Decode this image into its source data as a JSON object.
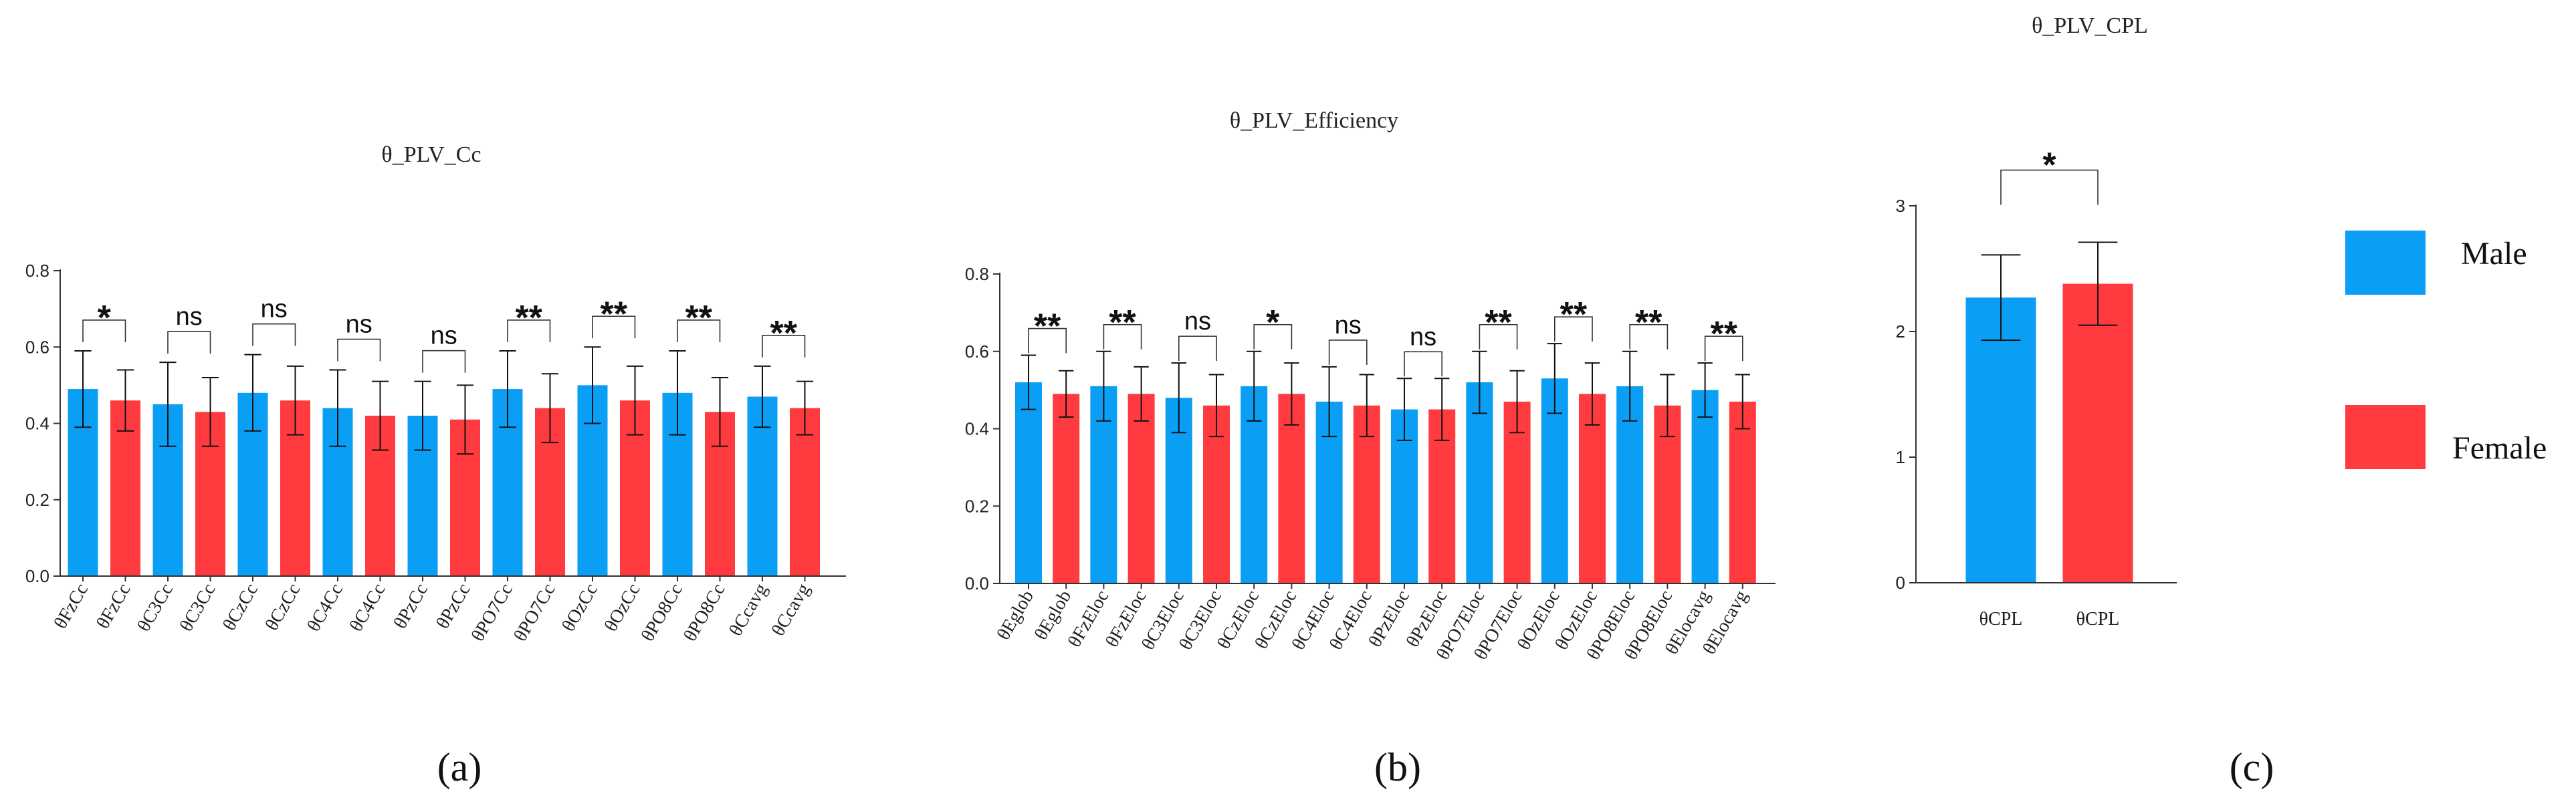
{
  "legend": {
    "male": {
      "label": "Male",
      "color": "#0A9EF5"
    },
    "female": {
      "label": "Female",
      "color": "#FF3B3F"
    }
  },
  "chart_data": [
    {
      "type": "bar",
      "panel_label": "(a)",
      "title": "θ_PLV_Cc",
      "categories": [
        "θFzCc",
        "θFzCc",
        "θC3Cc",
        "θC3Cc",
        "θCzCc",
        "θCzCc",
        "θC4Cc",
        "θC4Cc",
        "θPzCc",
        "θPzCc",
        "θPO7Cc",
        "θPO7Cc",
        "θOzCc",
        "θOzCc",
        "θPO8Cc",
        "θPO8Cc",
        "θCcavg",
        "θCcavg"
      ],
      "groups": [
        "Male",
        "Female",
        "Male",
        "Female",
        "Male",
        "Female",
        "Male",
        "Female",
        "Male",
        "Female",
        "Male",
        "Female",
        "Male",
        "Female",
        "Male",
        "Female",
        "Male",
        "Female"
      ],
      "values": [
        0.49,
        0.46,
        0.45,
        0.43,
        0.48,
        0.46,
        0.44,
        0.42,
        0.42,
        0.41,
        0.49,
        0.44,
        0.5,
        0.46,
        0.48,
        0.43,
        0.47,
        0.44
      ],
      "errors": [
        0.1,
        0.08,
        0.11,
        0.09,
        0.1,
        0.09,
        0.1,
        0.09,
        0.09,
        0.09,
        0.1,
        0.09,
        0.1,
        0.09,
        0.11,
        0.09,
        0.08,
        0.07
      ],
      "significance": [
        "*",
        "ns",
        "ns",
        "ns",
        "ns",
        "**",
        "**",
        "**",
        "**"
      ],
      "yticks": [
        "0.0",
        "0.2",
        "0.4",
        "0.6",
        "0.8"
      ],
      "ylim": [
        0,
        0.8
      ]
    },
    {
      "type": "bar",
      "panel_label": "(b)",
      "title": "θ_PLV_Efficiency",
      "categories": [
        "θEglob",
        "θEglob",
        "θFzEloc",
        "θFzEloc",
        "θC3Eloc",
        "θC3Eloc",
        "θCzEloc",
        "θCzEloc",
        "θC4Eloc",
        "θC4Eloc",
        "θPzEloc",
        "θPzEloc",
        "θPO7Eloc",
        "θPO7Eloc",
        "θOzEloc",
        "θOzEloc",
        "θPO8Eloc",
        "θPO8Eloc",
        "θElocavg",
        "θElocavg"
      ],
      "groups": [
        "Male",
        "Female",
        "Male",
        "Female",
        "Male",
        "Female",
        "Male",
        "Female",
        "Male",
        "Female",
        "Male",
        "Female",
        "Male",
        "Female",
        "Male",
        "Female",
        "Male",
        "Female",
        "Male",
        "Female"
      ],
      "values": [
        0.52,
        0.49,
        0.51,
        0.49,
        0.48,
        0.46,
        0.51,
        0.49,
        0.47,
        0.46,
        0.45,
        0.45,
        0.52,
        0.47,
        0.53,
        0.49,
        0.51,
        0.46,
        0.5,
        0.47
      ],
      "errors": [
        0.07,
        0.06,
        0.09,
        0.07,
        0.09,
        0.08,
        0.09,
        0.08,
        0.09,
        0.08,
        0.08,
        0.08,
        0.08,
        0.08,
        0.09,
        0.08,
        0.09,
        0.08,
        0.07,
        0.07
      ],
      "significance": [
        "**",
        "**",
        "ns",
        "*",
        "ns",
        "ns",
        "**",
        "**",
        "**",
        "**"
      ],
      "yticks": [
        "0.0",
        "0.2",
        "0.4",
        "0.6",
        "0.8"
      ],
      "ylim": [
        0,
        0.8
      ]
    },
    {
      "type": "bar",
      "panel_label": "(c)",
      "title": "θ_PLV_CPL",
      "categories": [
        "θCPL",
        "θCPL"
      ],
      "groups": [
        "Male",
        "Female"
      ],
      "values": [
        2.27,
        2.38
      ],
      "errors": [
        0.34,
        0.33
      ],
      "significance": [
        "*"
      ],
      "yticks": [
        "0",
        "1",
        "2",
        "3"
      ],
      "ylim": [
        0,
        3
      ]
    }
  ]
}
